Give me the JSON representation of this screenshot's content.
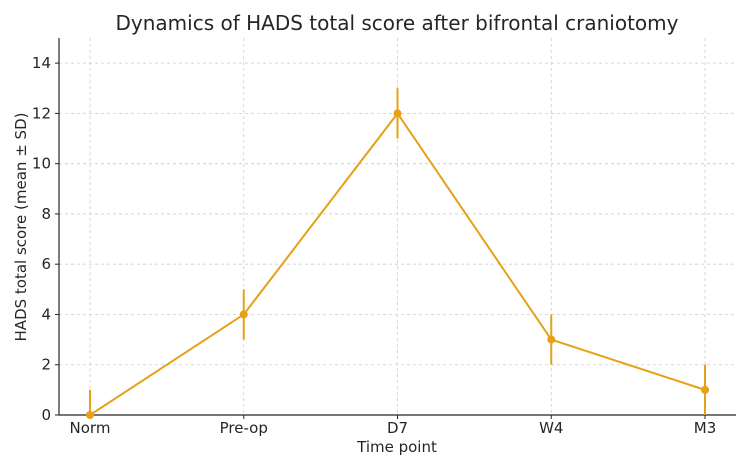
{
  "chart_data": {
    "type": "line",
    "title": "Dynamics of HADS total score after bifrontal craniotomy",
    "xlabel": "Time point",
    "ylabel": "HADS total score (mean ± SD)",
    "categories": [
      "Norm",
      "Pre-op",
      "D7",
      "W4",
      "M3"
    ],
    "ylim": [
      0,
      15
    ],
    "yticks": [
      0,
      2,
      4,
      6,
      8,
      10,
      12,
      14
    ],
    "grid": true,
    "series": [
      {
        "values": [
          0,
          4,
          12,
          3,
          1
        ],
        "sd": [
          1,
          1,
          1,
          1,
          1
        ],
        "color": "#E6A117"
      }
    ]
  }
}
